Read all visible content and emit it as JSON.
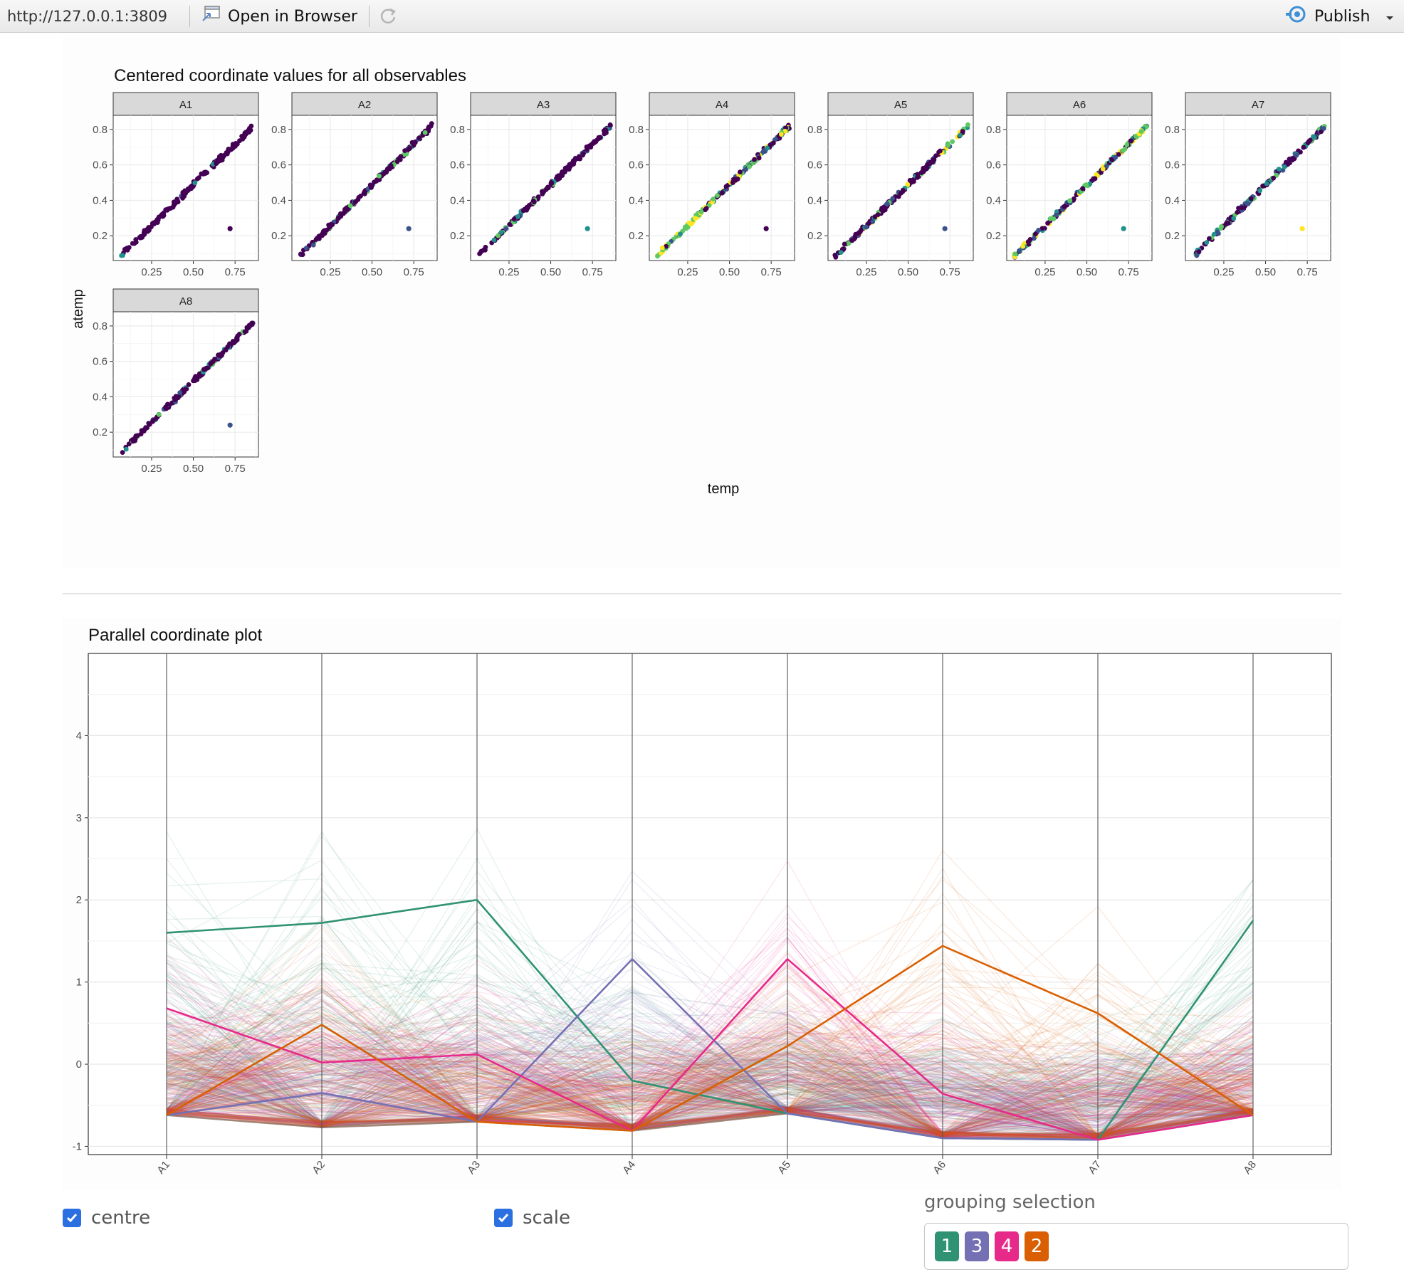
{
  "toolbar": {
    "url": "http://127.0.0.1:3809",
    "open_browser_label": "Open in Browser",
    "publish_label": "Publish"
  },
  "facet_chart": {
    "title": "Centered coordinate values for all observables",
    "xlabel": "temp",
    "ylabel": "atemp",
    "panels": [
      "A1",
      "A2",
      "A3",
      "A4",
      "A5",
      "A6",
      "A7",
      "A8"
    ],
    "x_ticks": [
      "0.25",
      "0.50",
      "0.75"
    ],
    "y_ticks": [
      "0.2",
      "0.4",
      "0.6",
      "0.8"
    ]
  },
  "pcp_chart": {
    "title": "Parallel coordinate plot",
    "axes": [
      "A1",
      "A2",
      "A3",
      "A4",
      "A5",
      "A6",
      "A7",
      "A8"
    ],
    "y_ticks": [
      "-1",
      "0",
      "1",
      "2",
      "3",
      "4"
    ]
  },
  "chart_data": [
    {
      "type": "scatter",
      "title": "Centered coordinate values for all observables",
      "xlabel": "temp",
      "ylabel": "atemp",
      "xlim": [
        0.02,
        0.89
      ],
      "ylim": [
        0.06,
        0.88
      ],
      "facets": [
        "A1",
        "A2",
        "A3",
        "A4",
        "A5",
        "A6",
        "A7",
        "A8"
      ],
      "trend": {
        "x": [
          0.06,
          0.86
        ],
        "y": [
          0.08,
          0.82
        ]
      },
      "outlier": {
        "x": 0.72,
        "y": 0.24
      },
      "grid": true
    },
    {
      "type": "line",
      "title": "Parallel coordinate plot",
      "categories": [
        "A1",
        "A2",
        "A3",
        "A4",
        "A5",
        "A6",
        "A7",
        "A8"
      ],
      "ylim": [
        -1.1,
        5.0
      ],
      "grid": true,
      "floor": [
        -0.62,
        -0.77,
        -0.7,
        -0.81,
        -0.6,
        -0.9,
        -0.92,
        -0.62
      ],
      "series": [
        {
          "name": "1",
          "color": "#2f9273",
          "values": [
            1.6,
            1.72,
            2.0,
            -0.2,
            -0.6,
            -0.9,
            -0.92,
            1.75
          ]
        },
        {
          "name": "3",
          "color": "#7570b3",
          "values": [
            -0.62,
            -0.35,
            -0.7,
            1.28,
            -0.6,
            -0.9,
            -0.92,
            -0.62
          ]
        },
        {
          "name": "4",
          "color": "#e7298a",
          "values": [
            0.68,
            0.02,
            0.12,
            -0.81,
            1.28,
            -0.36,
            -0.92,
            -0.62
          ]
        },
        {
          "name": "2",
          "color": "#d95f02",
          "values": [
            -0.62,
            0.48,
            -0.7,
            -0.81,
            0.22,
            1.44,
            0.62,
            -0.62
          ]
        }
      ]
    }
  ],
  "controls": {
    "centre_label": "centre",
    "scale_label": "scale",
    "grouping_label": "grouping selection",
    "groups": [
      {
        "label": "1",
        "color": "#2f9273"
      },
      {
        "label": "3",
        "color": "#7570b3"
      },
      {
        "label": "4",
        "color": "#e7298a"
      },
      {
        "label": "2",
        "color": "#d95f02"
      }
    ]
  }
}
